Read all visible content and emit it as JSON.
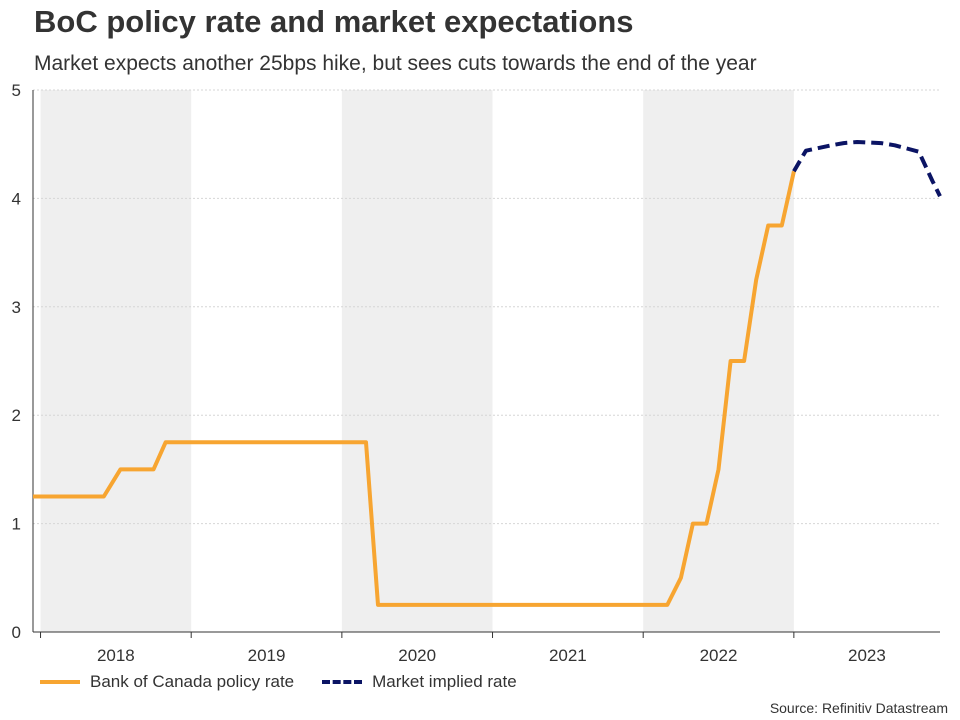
{
  "title": "BoC policy rate and market expectations",
  "subtitle": "Market expects another 25bps hike, but sees cuts towards the end of the year",
  "source": "Source: Refinitiv Datastream",
  "colors": {
    "policy_rate": "#f7a531",
    "market_rate": "#0b1464",
    "shade": "#efefef",
    "grid": "#d6d6d6",
    "axis": "#333333"
  },
  "chart_data": {
    "type": "line",
    "title": "BoC policy rate and market expectations",
    "subtitle": "Market expects another 25bps hike, but sees cuts towards the end of the year",
    "xlabel": "",
    "ylabel": "",
    "xlim": [
      2017.95,
      2023.97
    ],
    "ylim": [
      0,
      5
    ],
    "yticks": [
      0,
      1,
      2,
      3,
      4,
      5
    ],
    "year_labels": [
      "2018",
      "2019",
      "2020",
      "2021",
      "2022",
      "2023"
    ],
    "shaded_years": [
      "2018",
      "2020",
      "2022"
    ],
    "grid": true,
    "legend_position": "bottom-left",
    "series": [
      {
        "name": "Bank of Canada policy rate",
        "style": "solid",
        "points": [
          [
            2017.95,
            1.25
          ],
          [
            2018.42,
            1.25
          ],
          [
            2018.53,
            1.5
          ],
          [
            2018.75,
            1.5
          ],
          [
            2018.83,
            1.75
          ],
          [
            2020.16,
            1.75
          ],
          [
            2020.24,
            0.25
          ],
          [
            2022.16,
            0.25
          ],
          [
            2022.25,
            0.5
          ],
          [
            2022.33,
            1.0
          ],
          [
            2022.42,
            1.0
          ],
          [
            2022.5,
            1.5
          ],
          [
            2022.58,
            2.5
          ],
          [
            2022.67,
            2.5
          ],
          [
            2022.75,
            3.25
          ],
          [
            2022.83,
            3.75
          ],
          [
            2022.92,
            3.75
          ],
          [
            2023.0,
            4.25
          ]
        ]
      },
      {
        "name": "Market implied rate",
        "style": "dashed",
        "points": [
          [
            2023.0,
            4.25
          ],
          [
            2023.08,
            4.44
          ],
          [
            2023.25,
            4.49
          ],
          [
            2023.33,
            4.51
          ],
          [
            2023.42,
            4.52
          ],
          [
            2023.58,
            4.51
          ],
          [
            2023.67,
            4.49
          ],
          [
            2023.75,
            4.46
          ],
          [
            2023.83,
            4.43
          ],
          [
            2023.92,
            4.16
          ],
          [
            2023.97,
            4.02
          ]
        ]
      }
    ]
  }
}
